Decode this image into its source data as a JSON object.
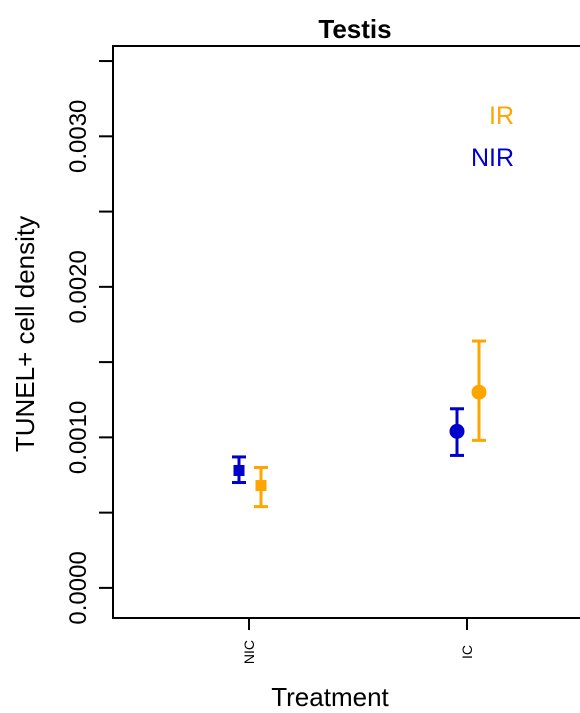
{
  "chart_data": {
    "type": "scatter",
    "title": "Testis",
    "xlabel": "Treatment",
    "ylabel": "TUNEL+ cell density",
    "categories": [
      "NIC",
      "IC"
    ],
    "ylim": [
      -0.0002,
      0.0036
    ],
    "yticks": [
      {
        "value": 0.0,
        "label": "0.0000"
      },
      {
        "value": 0.0005,
        "label": ""
      },
      {
        "value": 0.001,
        "label": "0.0010"
      },
      {
        "value": 0.0015,
        "label": ""
      },
      {
        "value": 0.002,
        "label": "0.0020"
      },
      {
        "value": 0.0025,
        "label": ""
      },
      {
        "value": 0.003,
        "label": "0.0030"
      },
      {
        "value": 0.0035,
        "label": ""
      }
    ],
    "grid": false,
    "legend_position": "top-right",
    "series": [
      {
        "name": "NIR",
        "color": "#0000cc",
        "points": [
          {
            "category": "NIC",
            "marker": "square",
            "y": 0.00078,
            "lower": 0.0007,
            "upper": 0.00087
          },
          {
            "category": "IC",
            "marker": "circle",
            "y": 0.00104,
            "lower": 0.00088,
            "upper": 0.00119
          }
        ]
      },
      {
        "name": "IR",
        "color": "#ffa500",
        "points": [
          {
            "category": "NIC",
            "marker": "square",
            "y": 0.00068,
            "lower": 0.00054,
            "upper": 0.0008
          },
          {
            "category": "IC",
            "marker": "circle",
            "y": 0.0013,
            "lower": 0.00098,
            "upper": 0.00164
          }
        ]
      }
    ],
    "legend": [
      {
        "label": "IR",
        "color": "#ffa500"
      },
      {
        "label": "NIR",
        "color": "#0000cc"
      }
    ]
  }
}
